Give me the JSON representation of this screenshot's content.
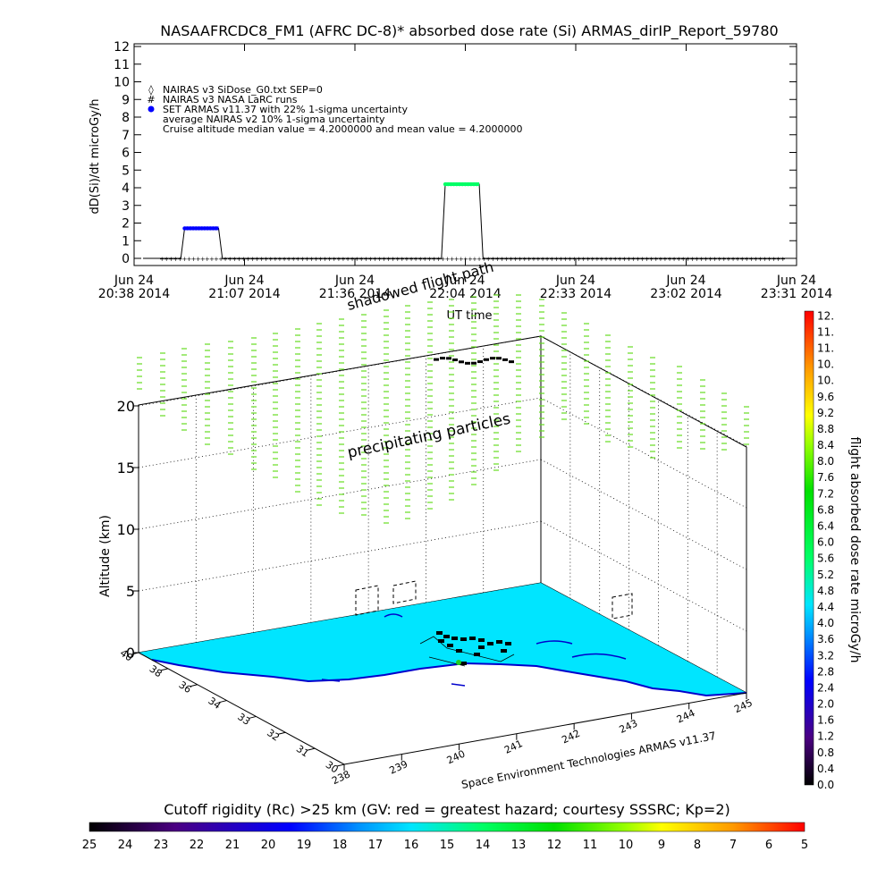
{
  "title": "NASAAFRCDC8_FM1 (AFRC DC-8)* absorbed dose rate (Si) ARMAS_dirIP_Report_59780",
  "chart_data": [
    {
      "type": "line",
      "ylabel": "dD(Si)/dt microGy/h",
      "xlabel": "UT time",
      "ylim": [
        0,
        12
      ],
      "y_ticks": [
        "0",
        "1",
        "2",
        "3",
        "4",
        "5",
        "6",
        "7",
        "8",
        "9",
        "10",
        "11",
        "12"
      ],
      "x_ticks": [
        {
          "top": "Jun 24",
          "bottom": "20:38 2014"
        },
        {
          "top": "Jun 24",
          "bottom": "21:07 2014"
        },
        {
          "top": "Jun 24",
          "bottom": "21:36 2014"
        },
        {
          "top": "Jun 24",
          "bottom": "22:04 2014"
        },
        {
          "top": "Jun 24",
          "bottom": "22:33 2014"
        },
        {
          "top": "Jun 24",
          "bottom": "23:02 2014"
        },
        {
          "top": "Jun 24",
          "bottom": "23:31 2014"
        }
      ],
      "legend": [
        {
          "symbol": "◊",
          "label": "NAIRAS v3 SiDose_G0.txt SEP=0"
        },
        {
          "symbol": "#",
          "label": "NAIRAS v3 NASA LaRC runs"
        },
        {
          "symbol": "●",
          "label": "SET ARMAS v11.37 with 22% 1-sigma uncertainty"
        },
        {
          "symbol": "",
          "label": "average NAIRAS v2 10% 1-sigma uncertainty"
        },
        {
          "symbol": "",
          "label": "Cruise altitude median value = 4.2000000 and mean value = 4.2000000"
        }
      ],
      "series": [
        {
          "color": "#0000ff",
          "values": [
            {
              "x": "20:49",
              "y": 1.7
            },
            {
              "x": "20:58",
              "y": 1.7
            }
          ]
        },
        {
          "color": "#00ff66",
          "values": [
            {
              "x": "21:58",
              "y": 4.2
            },
            {
              "x": "22:07",
              "y": 4.2
            }
          ]
        },
        {
          "color": "#000000",
          "values": [
            {
              "x": "20:38",
              "y": 0
            },
            {
              "x": "20:48",
              "y": 0
            },
            {
              "x": "20:49",
              "y": 1.7
            },
            {
              "x": "20:58",
              "y": 1.7
            },
            {
              "x": "20:59",
              "y": 0
            },
            {
              "x": "21:57",
              "y": 0
            },
            {
              "x": "21:58",
              "y": 4.2
            },
            {
              "x": "22:07",
              "y": 4.2
            },
            {
              "x": "22:08",
              "y": 0
            },
            {
              "x": "23:30",
              "y": 0
            }
          ]
        }
      ]
    },
    {
      "type": "3d-surface",
      "zlabel": "Altitude (km)",
      "z_ticks": [
        "0",
        "5",
        "10",
        "15",
        "20"
      ],
      "lat_ticks": [
        "30",
        "31",
        "32",
        "33",
        "34",
        "36",
        "38",
        "40"
      ],
      "lon_ticks": [
        "238",
        "239",
        "240",
        "241",
        "242",
        "243",
        "244",
        "245"
      ],
      "annotations": [
        "shadowed flight path",
        "precipitating particles"
      ],
      "credit": "Space Environment Technologies ARMAS v11.37",
      "surface_color": "#00e5ff"
    }
  ],
  "colorbar_right": {
    "label": "flight absorbed dose rate microGy/h",
    "ticks": [
      "0.0",
      "0.4",
      "0.8",
      "1.2",
      "1.6",
      "2.0",
      "2.4",
      "2.8",
      "3.2",
      "3.6",
      "4.0",
      "4.4",
      "4.8",
      "5.2",
      "5.6",
      "6.0",
      "6.4",
      "6.8",
      "7.2",
      "7.6",
      "8.0",
      "8.4",
      "8.8",
      "9.2",
      "9.6",
      "10.",
      "10.",
      "11.",
      "11.",
      "12."
    ]
  },
  "colorbar_bottom": {
    "label": "Cutoff rigidity (Rc) >25 km (GV: red = greatest hazard; courtesy SSSRC; Kp=2)",
    "ticks": [
      "25",
      "24",
      "23",
      "22",
      "21",
      "20",
      "19",
      "18",
      "17",
      "16",
      "15",
      "14",
      "13",
      "12",
      "11",
      "10",
      "9",
      "8",
      "7",
      "6",
      "5"
    ]
  }
}
